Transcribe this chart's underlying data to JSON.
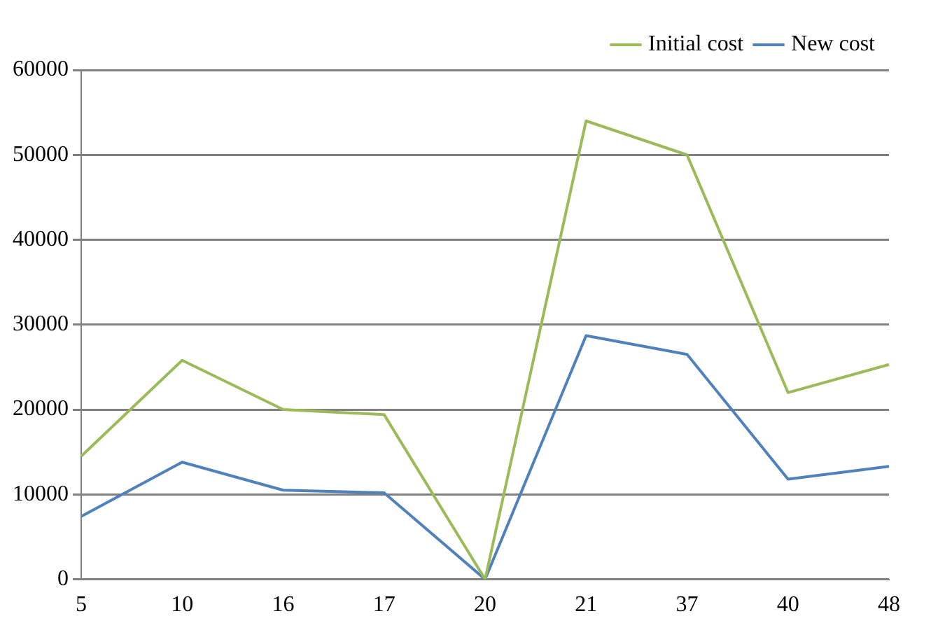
{
  "chart_data": {
    "type": "line",
    "categories": [
      "5",
      "10",
      "16",
      "17",
      "20",
      "21",
      "37",
      "40",
      "48"
    ],
    "series": [
      {
        "name": "Initial cost",
        "color": "#9bbb59",
        "values": [
          14500,
          25800,
          20000,
          19400,
          0,
          54000,
          50000,
          22000,
          25300
        ]
      },
      {
        "name": "New cost",
        "color": "#4f81bd",
        "values": [
          7400,
          13800,
          10500,
          10200,
          0,
          28700,
          26500,
          11800,
          13300
        ]
      }
    ],
    "ylim": [
      0,
      60000
    ],
    "yticks": [
      0,
      10000,
      20000,
      30000,
      40000,
      50000,
      60000
    ],
    "grid": "y",
    "legend": "top right",
    "marker": "none",
    "line_style": "solid"
  }
}
